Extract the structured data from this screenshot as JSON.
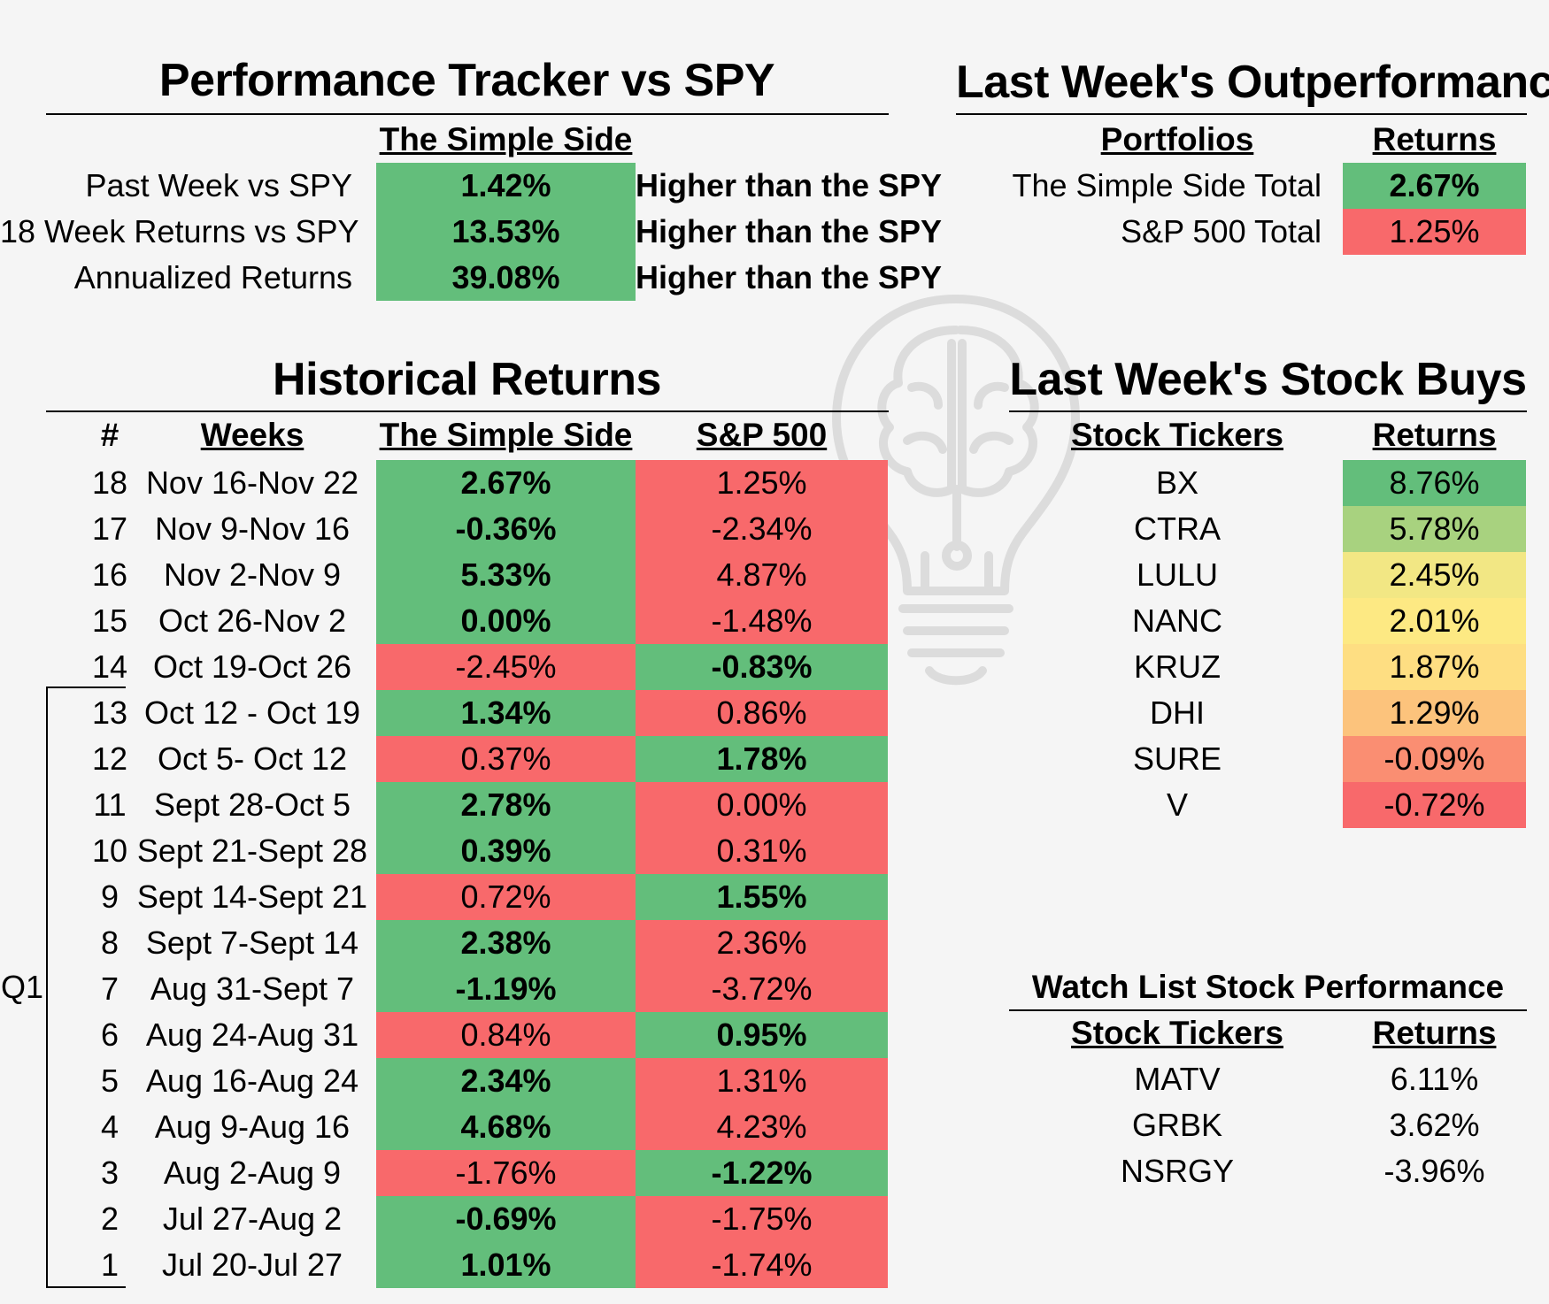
{
  "tracker": {
    "title": "Performance Tracker vs SPY",
    "column_header": "The Simple Side",
    "rows": [
      {
        "label": "Past Week vs SPY",
        "value": "1.42%",
        "note": "Higher than the SPY"
      },
      {
        "label": "18 Week Returns vs SPY",
        "value": "13.53%",
        "note": "Higher than the SPY"
      },
      {
        "label": "Annualized Returns",
        "value": "39.08%",
        "note": "Higher than the SPY"
      }
    ]
  },
  "outperformance": {
    "title": "Last Week's Outperformance",
    "headers": {
      "portfolios": "Portfolios",
      "returns": "Returns"
    },
    "rows": [
      {
        "label": "The Simple Side Total",
        "value": "2.67%",
        "color": "#63be7b"
      },
      {
        "label": "S&P 500 Total",
        "value": "1.25%",
        "color": "#f8696b"
      }
    ]
  },
  "historical": {
    "title": "Historical Returns",
    "headers": {
      "num": "#",
      "weeks": "Weeks",
      "simple": "The Simple Side",
      "sp": "S&P 500"
    },
    "quarter_label": "Q1",
    "rows": [
      {
        "num": "18",
        "weeks": "Nov 16-Nov 22",
        "simple": "2.67%",
        "sp": "1.25%",
        "simple_wins": true
      },
      {
        "num": "17",
        "weeks": "Nov 9-Nov 16",
        "simple": "-0.36%",
        "sp": "-2.34%",
        "simple_wins": true
      },
      {
        "num": "16",
        "weeks": "Nov 2-Nov 9",
        "simple": "5.33%",
        "sp": "4.87%",
        "simple_wins": true
      },
      {
        "num": "15",
        "weeks": "Oct 26-Nov 2",
        "simple": "0.00%",
        "sp": "-1.48%",
        "simple_wins": true
      },
      {
        "num": "14",
        "weeks": "Oct 19-Oct 26",
        "simple": "-2.45%",
        "sp": "-0.83%",
        "simple_wins": false
      },
      {
        "num": "13",
        "weeks": "Oct 12 - Oct 19",
        "simple": "1.34%",
        "sp": "0.86%",
        "simple_wins": true
      },
      {
        "num": "12",
        "weeks": "Oct 5- Oct 12",
        "simple": "0.37%",
        "sp": "1.78%",
        "simple_wins": false
      },
      {
        "num": "11",
        "weeks": "Sept 28-Oct 5",
        "simple": "2.78%",
        "sp": "0.00%",
        "simple_wins": true
      },
      {
        "num": "10",
        "weeks": "Sept 21-Sept 28",
        "simple": "0.39%",
        "sp": "0.31%",
        "simple_wins": true
      },
      {
        "num": "9",
        "weeks": "Sept 14-Sept 21",
        "simple": "0.72%",
        "sp": "1.55%",
        "simple_wins": false
      },
      {
        "num": "8",
        "weeks": "Sept 7-Sept 14",
        "simple": "2.38%",
        "sp": "2.36%",
        "simple_wins": true
      },
      {
        "num": "7",
        "weeks": "Aug 31-Sept 7",
        "simple": "-1.19%",
        "sp": "-3.72%",
        "simple_wins": true
      },
      {
        "num": "6",
        "weeks": "Aug 24-Aug 31",
        "simple": "0.84%",
        "sp": "0.95%",
        "simple_wins": false
      },
      {
        "num": "5",
        "weeks": "Aug 16-Aug 24",
        "simple": "2.34%",
        "sp": "1.31%",
        "simple_wins": true
      },
      {
        "num": "4",
        "weeks": "Aug 9-Aug 16",
        "simple": "4.68%",
        "sp": "4.23%",
        "simple_wins": true
      },
      {
        "num": "3",
        "weeks": "Aug 2-Aug 9",
        "simple": "-1.76%",
        "sp": "-1.22%",
        "simple_wins": false
      },
      {
        "num": "2",
        "weeks": "Jul 27-Aug 2",
        "simple": "-0.69%",
        "sp": "-1.75%",
        "simple_wins": true
      },
      {
        "num": "1",
        "weeks": "Jul 20-Jul 27",
        "simple": "1.01%",
        "sp": "-1.74%",
        "simple_wins": true
      }
    ]
  },
  "stock_buys": {
    "title": "Last Week's Stock Buys",
    "headers": {
      "tickers": "Stock Tickers",
      "returns": "Returns"
    },
    "rows": [
      {
        "ticker": "BX",
        "value": "8.76%",
        "color": "#63be7b"
      },
      {
        "ticker": "CTRA",
        "value": "5.78%",
        "color": "#a8d27f"
      },
      {
        "ticker": "LULU",
        "value": "2.45%",
        "color": "#f2e784"
      },
      {
        "ticker": "NANC",
        "value": "2.01%",
        "color": "#fde983"
      },
      {
        "ticker": "KRUZ",
        "value": "1.87%",
        "color": "#fede82"
      },
      {
        "ticker": "DHI",
        "value": "1.29%",
        "color": "#fcc37c"
      },
      {
        "ticker": "SURE",
        "value": "-0.09%",
        "color": "#fa8e72"
      },
      {
        "ticker": "V",
        "value": "-0.72%",
        "color": "#f8696b"
      }
    ]
  },
  "watch_list": {
    "title": "Watch List Stock Performance",
    "headers": {
      "tickers": "Stock Tickers",
      "returns": "Returns"
    },
    "rows": [
      {
        "ticker": "MATV",
        "value": "6.11%"
      },
      {
        "ticker": "GRBK",
        "value": "3.62%"
      },
      {
        "ticker": "NSRGY",
        "value": "-3.96%"
      }
    ]
  },
  "colors": {
    "green": "#63be7b",
    "red": "#f8696b",
    "background": "#f5f5f5"
  },
  "watermark_icon": "lightbulb-brain-icon"
}
